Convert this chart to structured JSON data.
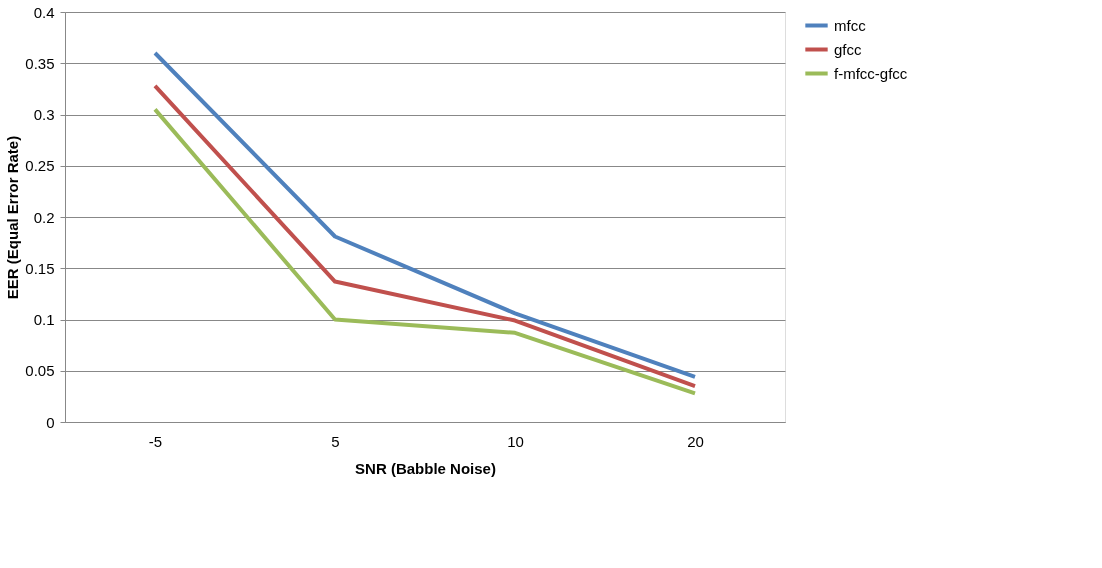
{
  "chart_data": {
    "type": "line",
    "xlabel": "SNR (Babble Noise)",
    "ylabel": "EER (Equal Error Rate)",
    "categories": [
      "-5",
      "5",
      "10",
      "20"
    ],
    "series": [
      {
        "name": "mfcc",
        "color": "#4f81bd",
        "values": [
          0.36,
          0.181,
          0.106,
          0.044
        ]
      },
      {
        "name": "gfcc",
        "color": "#c0504d",
        "values": [
          0.328,
          0.137,
          0.099,
          0.035
        ]
      },
      {
        "name": "f-mfcc-gfcc",
        "color": "#9bbb59",
        "values": [
          0.305,
          0.1,
          0.087,
          0.028
        ]
      }
    ],
    "ylim": [
      0,
      0.4
    ],
    "yticks": [
      0,
      0.05,
      0.1,
      0.15,
      0.2,
      0.25,
      0.3,
      0.35,
      0.4
    ],
    "grid": "y",
    "legend": "right",
    "marker": "none",
    "line_style": "solid"
  }
}
